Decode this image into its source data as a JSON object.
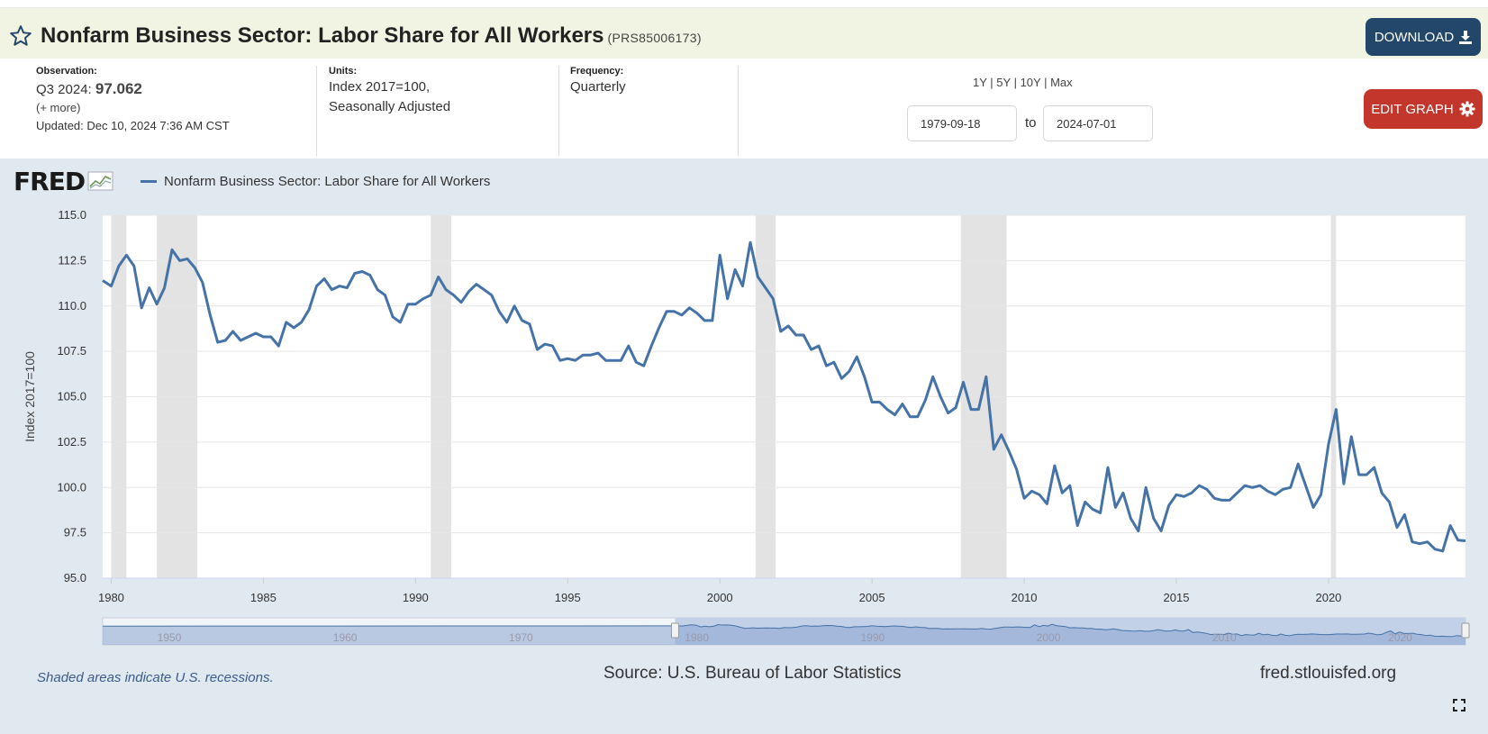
{
  "header": {
    "title": "Nonfarm Business Sector: Labor Share for All Workers",
    "series_code": "(PRS85006173)",
    "download_label": "DOWNLOAD"
  },
  "meta": {
    "observation_label": "Observation:",
    "observation_period": "Q3 2024:",
    "observation_value": "97.062",
    "more_link": "(+ more)",
    "updated_label": "Updated:",
    "updated_value": "Dec 10, 2024 7:36 AM CST",
    "units_label": "Units:",
    "units_line1": "Index 2017=100,",
    "units_line2": "Seasonally Adjusted",
    "frequency_label": "Frequency:",
    "frequency_value": "Quarterly"
  },
  "range": {
    "links": [
      "1Y",
      "5Y",
      "10Y",
      "Max"
    ],
    "start_date": "1979-09-18",
    "to_label": "to",
    "end_date": "2024-07-01",
    "edit_label": "EDIT GRAPH"
  },
  "footer": {
    "recession_note": "Shaded areas indicate U.S. recessions.",
    "source": "Source: U.S. Bureau of Labor Statistics",
    "site": "fred.stlouisfed.org"
  },
  "colors": {
    "series": "#4572a7",
    "recession": "#e3e3e3",
    "background": "#e1e9f0",
    "download_button": "#23466b",
    "edit_button": "#c2362b"
  },
  "chart_data": {
    "type": "line",
    "title": "",
    "legend": [
      "Nonfarm Business Sector: Labor Share for All Workers"
    ],
    "legend_position": "top-left",
    "xlabel": "",
    "ylabel": "Index 2017=100",
    "ylim": [
      95.0,
      115.0
    ],
    "xlim": [
      1979.72,
      2024.5
    ],
    "yticks": [
      "95.0",
      "97.5",
      "100.0",
      "102.5",
      "105.0",
      "107.5",
      "110.0",
      "112.5",
      "115.0"
    ],
    "xticks": [
      "1980",
      "1985",
      "1990",
      "1995",
      "2000",
      "2005",
      "2010",
      "2015",
      "2020"
    ],
    "grid": true,
    "recessions": [
      [
        1980.0,
        1980.5
      ],
      [
        1981.5,
        1982.83
      ],
      [
        1990.5,
        1991.17
      ],
      [
        2001.17,
        2001.83
      ],
      [
        2007.92,
        2009.42
      ],
      [
        2020.08,
        2020.25
      ]
    ],
    "series": [
      {
        "name": "Nonfarm Business Sector: Labor Share for All Workers",
        "x": [
          1979.72,
          1980.0,
          1980.25,
          1980.5,
          1980.75,
          1981.0,
          1981.25,
          1981.5,
          1981.75,
          1982.0,
          1982.25,
          1982.5,
          1982.75,
          1983.0,
          1983.25,
          1983.5,
          1983.75,
          1984.0,
          1984.25,
          1984.5,
          1984.75,
          1985.0,
          1985.25,
          1985.5,
          1985.75,
          1986.0,
          1986.25,
          1986.5,
          1986.75,
          1987.0,
          1987.25,
          1987.5,
          1987.75,
          1988.0,
          1988.25,
          1988.5,
          1988.75,
          1989.0,
          1989.25,
          1989.5,
          1989.75,
          1990.0,
          1990.25,
          1990.5,
          1990.75,
          1991.0,
          1991.25,
          1991.5,
          1991.75,
          1992.0,
          1992.25,
          1992.5,
          1992.75,
          1993.0,
          1993.25,
          1993.5,
          1993.75,
          1994.0,
          1994.25,
          1994.5,
          1994.75,
          1995.0,
          1995.25,
          1995.5,
          1995.75,
          1996.0,
          1996.25,
          1996.5,
          1996.75,
          1997.0,
          1997.25,
          1997.5,
          1997.75,
          1998.0,
          1998.25,
          1998.5,
          1998.75,
          1999.0,
          1999.25,
          1999.5,
          1999.75,
          2000.0,
          2000.25,
          2000.5,
          2000.75,
          2001.0,
          2001.25,
          2001.5,
          2001.75,
          2002.0,
          2002.25,
          2002.5,
          2002.75,
          2003.0,
          2003.25,
          2003.5,
          2003.75,
          2004.0,
          2004.25,
          2004.5,
          2004.75,
          2005.0,
          2005.25,
          2005.5,
          2005.75,
          2006.0,
          2006.25,
          2006.5,
          2006.75,
          2007.0,
          2007.25,
          2007.5,
          2007.75,
          2008.0,
          2008.25,
          2008.5,
          2008.75,
          2009.0,
          2009.25,
          2009.5,
          2009.75,
          2010.0,
          2010.25,
          2010.5,
          2010.75,
          2011.0,
          2011.25,
          2011.5,
          2011.75,
          2012.0,
          2012.25,
          2012.5,
          2012.75,
          2013.0,
          2013.25,
          2013.5,
          2013.75,
          2014.0,
          2014.25,
          2014.5,
          2014.75,
          2015.0,
          2015.25,
          2015.5,
          2015.75,
          2016.0,
          2016.25,
          2016.5,
          2016.75,
          2017.0,
          2017.25,
          2017.5,
          2017.75,
          2018.0,
          2018.25,
          2018.5,
          2018.75,
          2019.0,
          2019.25,
          2019.5,
          2019.75,
          2020.0,
          2020.25,
          2020.5,
          2020.75,
          2021.0,
          2021.25,
          2021.5,
          2021.75,
          2022.0,
          2022.25,
          2022.5,
          2022.75,
          2023.0,
          2023.25,
          2023.5,
          2023.75,
          2024.0,
          2024.25,
          2024.5
        ],
        "values": [
          111.4,
          111.1,
          112.2,
          112.8,
          112.2,
          109.9,
          111.0,
          110.1,
          111.0,
          113.1,
          112.5,
          112.6,
          112.1,
          111.3,
          109.5,
          108.0,
          108.1,
          108.6,
          108.1,
          108.3,
          108.5,
          108.3,
          108.3,
          107.8,
          109.1,
          108.8,
          109.1,
          109.8,
          111.1,
          111.5,
          110.9,
          111.1,
          111.0,
          111.8,
          111.9,
          111.7,
          110.9,
          110.6,
          109.4,
          109.1,
          110.1,
          110.1,
          110.4,
          110.6,
          111.6,
          110.9,
          110.6,
          110.2,
          110.8,
          111.2,
          110.9,
          110.6,
          109.7,
          109.1,
          110.0,
          109.2,
          109.0,
          107.6,
          107.9,
          107.8,
          107.0,
          107.1,
          107.0,
          107.3,
          107.3,
          107.4,
          107.0,
          107.0,
          107.0,
          107.8,
          106.9,
          106.7,
          107.8,
          108.8,
          109.7,
          109.7,
          109.5,
          109.9,
          109.6,
          109.2,
          109.2,
          112.8,
          110.4,
          112.0,
          111.1,
          113.5,
          111.6,
          111.0,
          110.4,
          108.6,
          108.9,
          108.4,
          108.4,
          107.6,
          107.8,
          106.7,
          106.9,
          106.0,
          106.4,
          107.2,
          106.1,
          104.7,
          104.7,
          104.3,
          104.0,
          104.6,
          103.9,
          103.9,
          104.8,
          106.1,
          105.0,
          104.1,
          104.4,
          105.8,
          104.3,
          104.3,
          106.1,
          102.1,
          102.9,
          102.0,
          101.0,
          99.4,
          99.8,
          99.6,
          99.1,
          101.2,
          99.7,
          100.1,
          97.9,
          99.2,
          98.8,
          98.6,
          101.1,
          98.9,
          99.7,
          98.3,
          97.6,
          100.0,
          98.3,
          97.6,
          99.0,
          99.6,
          99.5,
          99.7,
          100.1,
          99.9,
          99.4,
          99.3,
          99.3,
          99.7,
          100.1,
          100.0,
          100.1,
          99.8,
          99.6,
          99.9,
          100.0,
          101.3,
          100.1,
          98.9,
          99.6,
          102.4,
          104.3,
          100.2,
          102.8,
          100.7,
          100.7,
          101.1,
          99.7,
          99.2,
          97.8,
          98.5,
          97.0,
          96.9,
          97.0,
          96.6,
          96.5,
          97.9,
          97.1,
          97.06
        ]
      }
    ]
  }
}
